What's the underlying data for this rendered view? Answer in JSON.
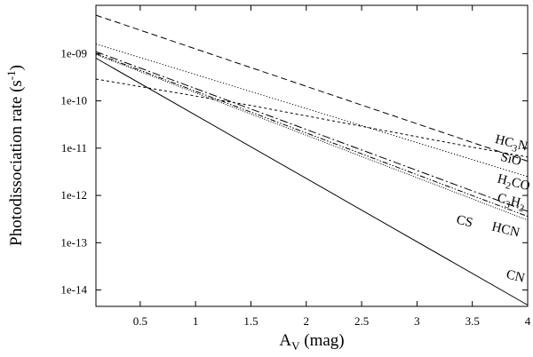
{
  "chart_data": {
    "type": "line",
    "title": "",
    "xlabel": "A",
    "xlabel_sub": "V",
    "xlabel_unit": " (mag)",
    "ylabel": "Photodissociation rate (s",
    "ylabel_sup": "-1",
    "ylabel_end": ")",
    "xlim": [
      0.1,
      4.0
    ],
    "ylim": [
      4.5e-15,
      1.05e-08
    ],
    "y_scale": "log",
    "grid": false,
    "legend": "none",
    "x_ticks": [
      {
        "value": 0.5,
        "label": "0.5"
      },
      {
        "value": 1.0,
        "label": "1"
      },
      {
        "value": 1.5,
        "label": "1.5"
      },
      {
        "value": 2.0,
        "label": "2"
      },
      {
        "value": 2.5,
        "label": "2.5"
      },
      {
        "value": 3.0,
        "label": "3"
      },
      {
        "value": 3.5,
        "label": "3.5"
      },
      {
        "value": 4.0,
        "label": "4"
      }
    ],
    "y_ticks": [
      {
        "value": 1e-09,
        "label": "1e-09"
      },
      {
        "value": 1e-10,
        "label": "1e-10"
      },
      {
        "value": 1e-11,
        "label": "1e-11"
      },
      {
        "value": 1e-12,
        "label": "1e-12"
      },
      {
        "value": 1e-13,
        "label": "1e-13"
      },
      {
        "value": 1e-14,
        "label": "1e-14"
      }
    ],
    "series": [
      {
        "key": "HC3N",
        "label_main": "HC",
        "label_sub": "3",
        "label_end": "N",
        "style": "dashed",
        "x": [
          0.1,
          4.0
        ],
        "y": [
          6.5e-09,
          5.3e-12
        ],
        "label_at": {
          "x": 3.7,
          "y": 1.3e-11
        }
      },
      {
        "key": "SiO",
        "label_main": "SiO",
        "label_sub": "",
        "label_end": "",
        "style": "short-dashed",
        "x": [
          0.1,
          1.5,
          2.5,
          3.5,
          4.0
        ],
        "y": [
          2.9e-10,
          8e-11,
          2.9e-11,
          1.05e-11,
          6.5e-12
        ],
        "label_at": {
          "x": 3.75,
          "y": 5.5e-12
        }
      },
      {
        "key": "H2CO",
        "label_main": "H",
        "label_sub": "2",
        "label_end": "CO",
        "style": "dotted",
        "x": [
          0.1,
          4.0
        ],
        "y": [
          1.6e-09,
          2.5e-12
        ],
        "label_at": {
          "x": 3.72,
          "y": 1.9e-12
        }
      },
      {
        "key": "C3H2",
        "label_main": "C",
        "label_sub": "3",
        "label_end": "H",
        "label_sub2": "2",
        "style": "dash-dot",
        "x": [
          0.1,
          4.0
        ],
        "y": [
          1.1e-09,
          4.6e-13
        ],
        "label_at": {
          "x": 3.72,
          "y": 7.5e-13
        }
      },
      {
        "key": "CS",
        "label_main": "CS",
        "label_sub": "",
        "label_end": "",
        "style": "dash-dot-dot",
        "x": [
          0.1,
          4.0
        ],
        "y": [
          1e-09,
          3.6e-13
        ],
        "label_at": {
          "x": 3.35,
          "y": 2.6e-13
        }
      },
      {
        "key": "HCN",
        "label_main": "HCN",
        "label_sub": "",
        "label_end": "",
        "style": "fine-dotted",
        "x": [
          0.1,
          4.0
        ],
        "y": [
          9.5e-10,
          3e-13
        ],
        "label_at": {
          "x": 3.67,
          "y": 1.85e-13
        }
      },
      {
        "key": "CN",
        "label_main": "CN",
        "label_sub": "",
        "label_end": "",
        "style": "solid",
        "x": [
          0.1,
          4.0
        ],
        "y": [
          8e-10,
          4.8e-15
        ],
        "label_at": {
          "x": 3.8,
          "y": 1.8e-14
        }
      }
    ]
  }
}
